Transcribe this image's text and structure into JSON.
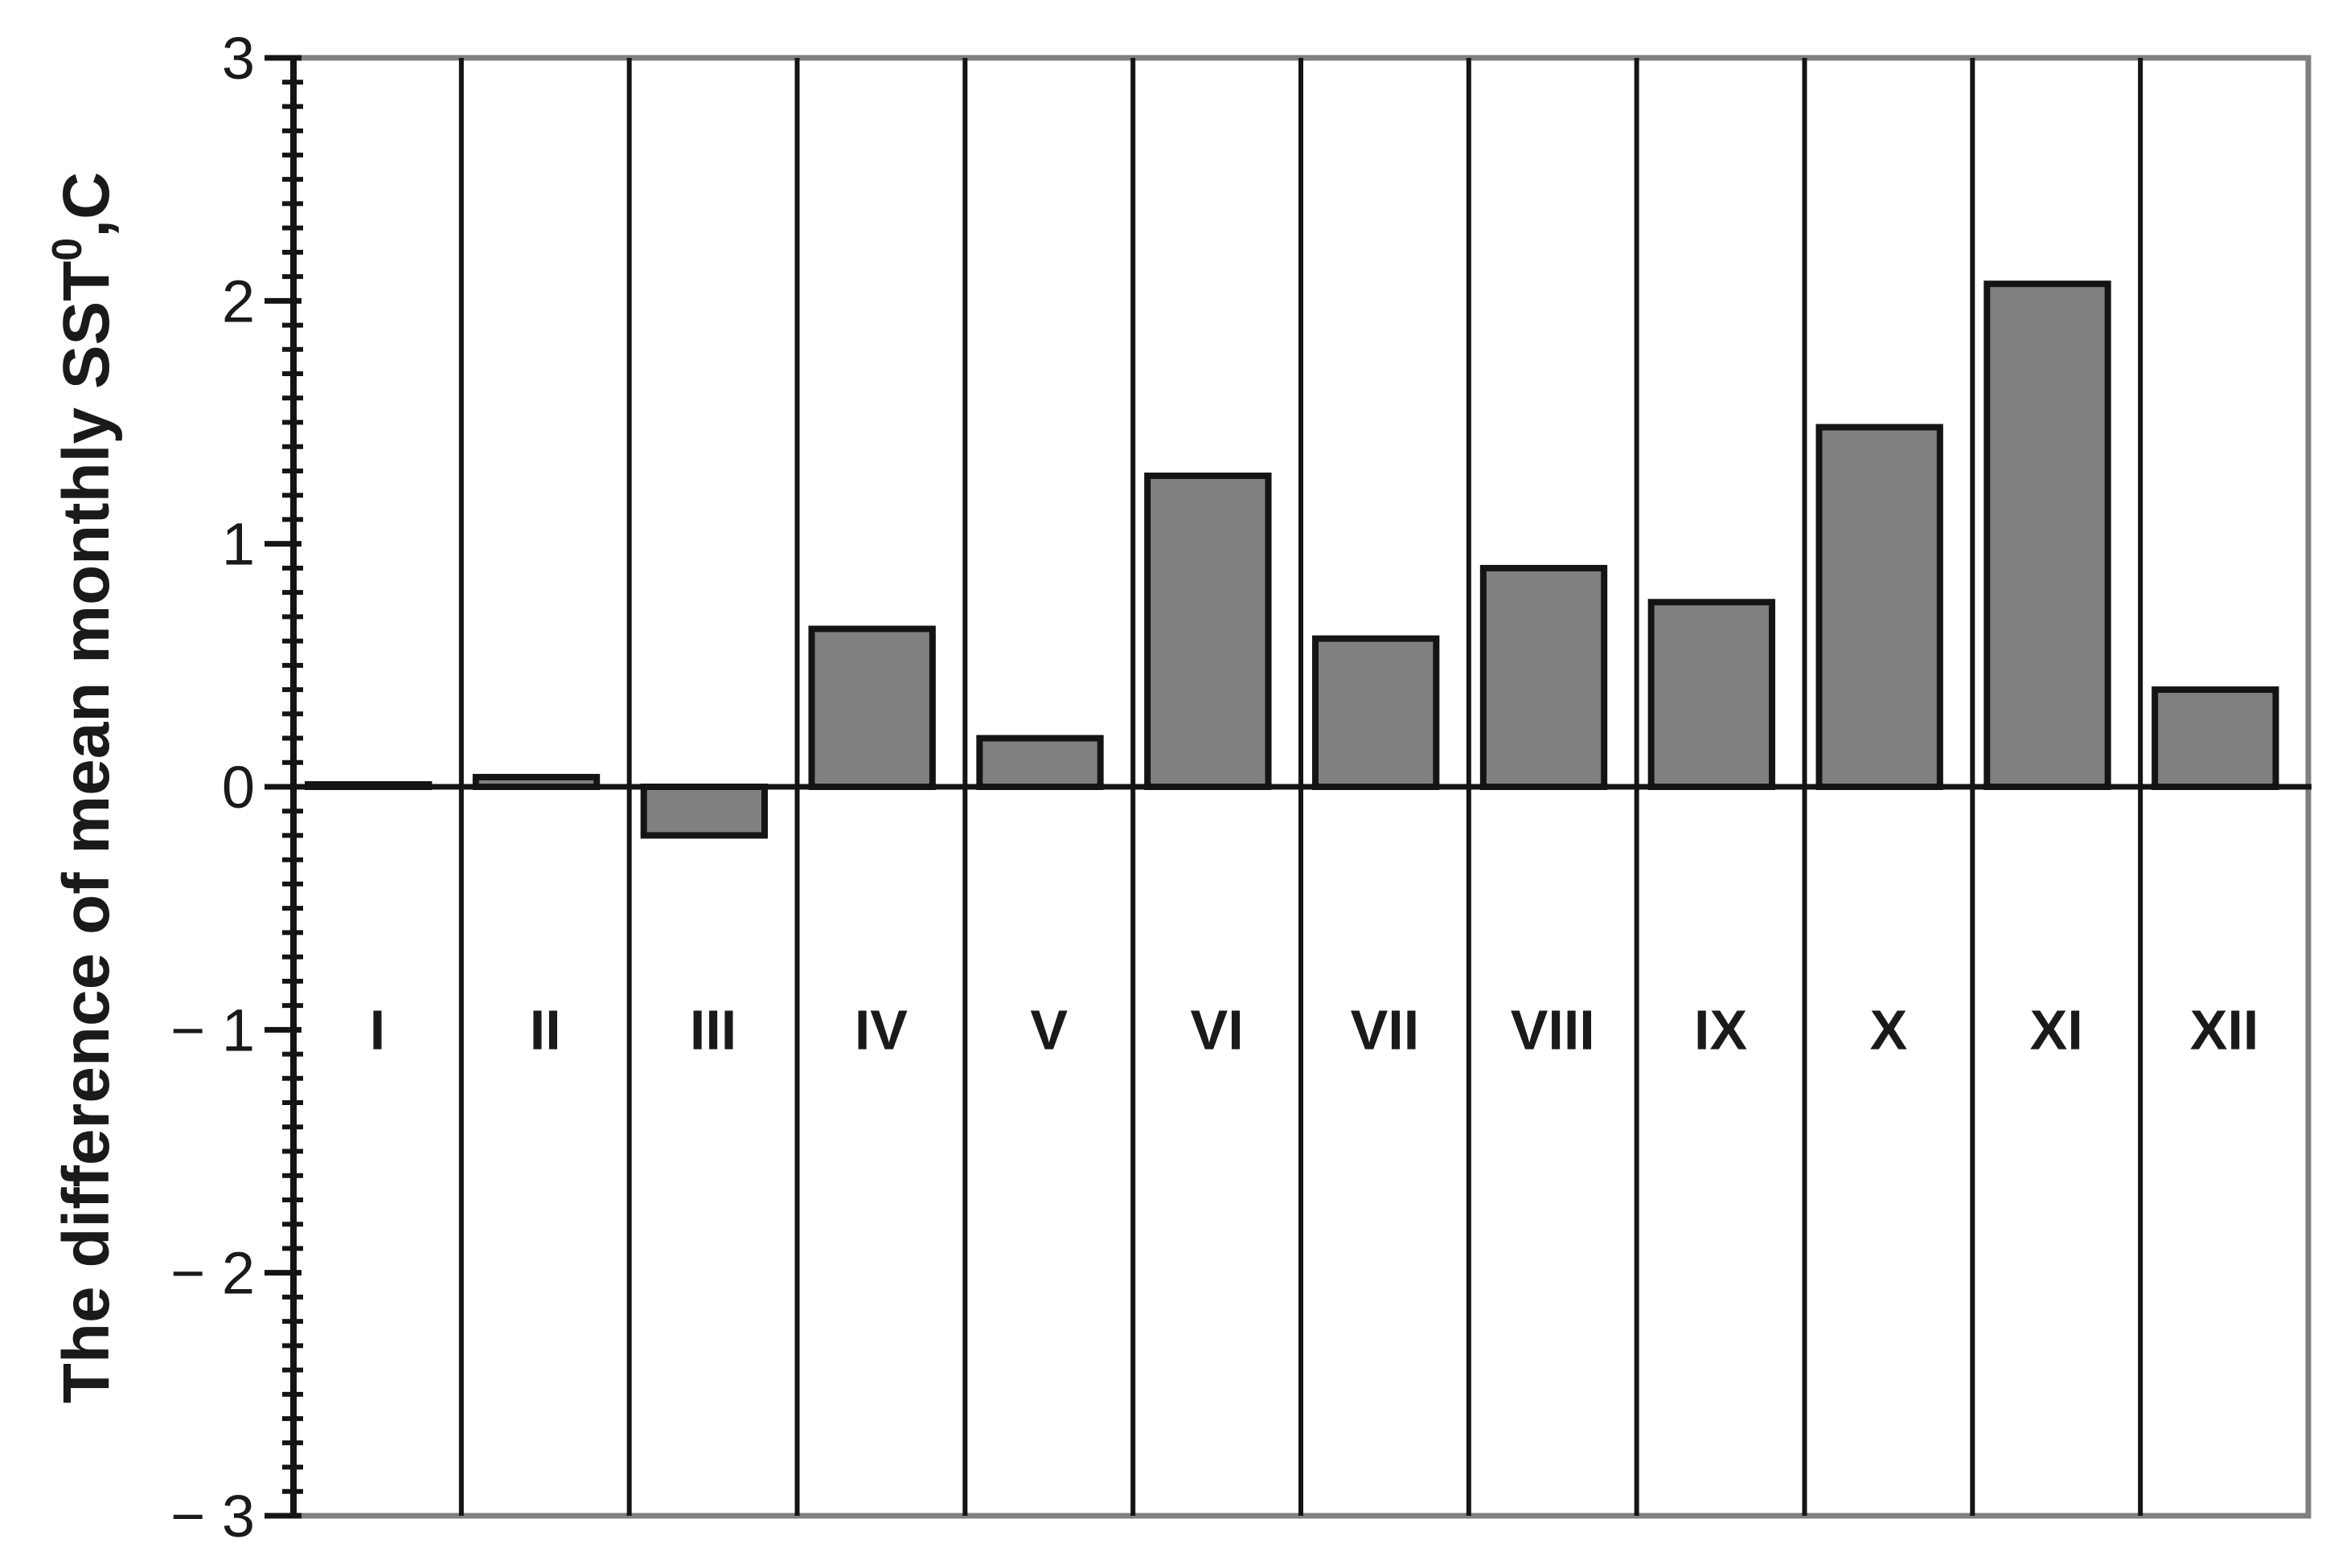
{
  "chart_data": {
    "type": "bar",
    "categories": [
      "I",
      "II",
      "III",
      "IV",
      "V",
      "VI",
      "VII",
      "VIII",
      "IX",
      "X",
      "XI",
      "XII"
    ],
    "values": [
      0.01,
      0.04,
      -0.2,
      0.65,
      0.2,
      1.28,
      0.61,
      0.9,
      0.76,
      1.48,
      2.07,
      0.4
    ],
    "ylabel": {
      "text": "The difference of mean monthly SST",
      "sup": "0",
      "unit": ",C"
    },
    "ylim": [
      -3,
      3
    ],
    "yticks": [
      {
        "value": 3,
        "label": "3"
      },
      {
        "value": 2,
        "label": "2"
      },
      {
        "value": 1,
        "label": "1"
      },
      {
        "value": 0,
        "label": "0"
      },
      {
        "value": -1,
        "label": "− 1"
      },
      {
        "value": -2,
        "label": "− 2"
      },
      {
        "value": -3,
        "label": "− 3"
      }
    ],
    "category_label_y": -1,
    "grid": "vertical separators between months",
    "colors": {
      "bar_fill": "#808080",
      "bar_stroke": "#141414",
      "frame": "#808080"
    }
  }
}
